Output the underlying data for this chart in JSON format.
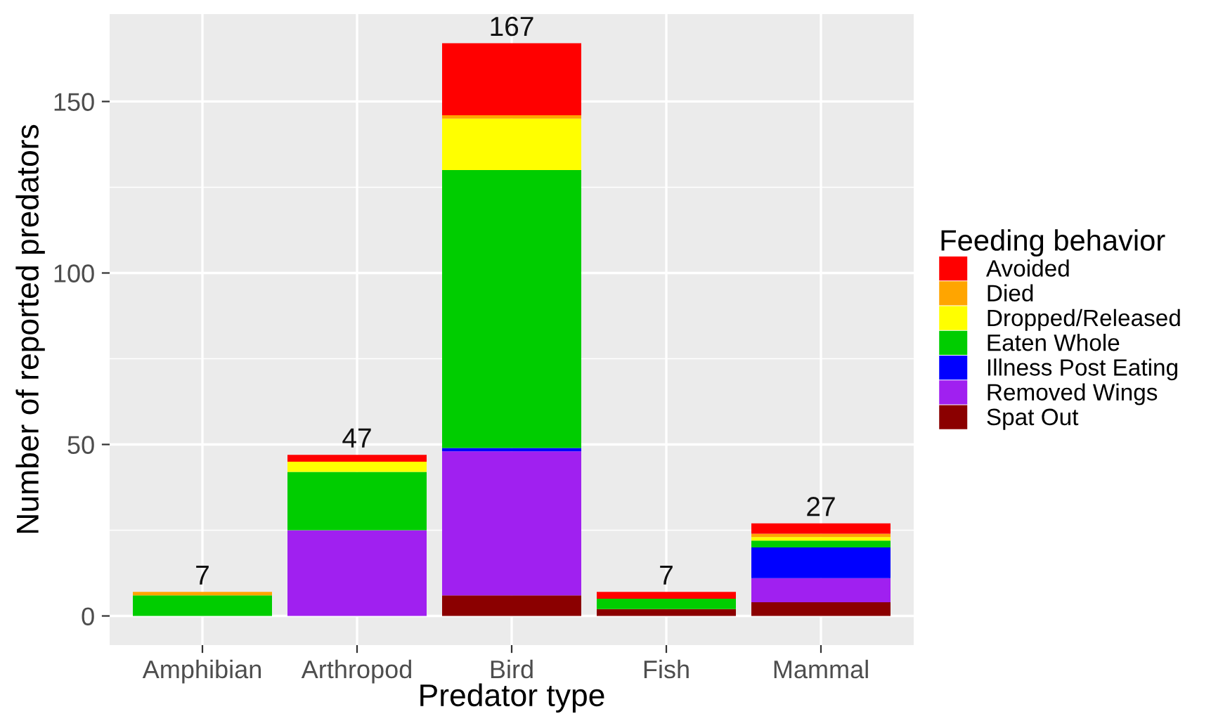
{
  "chart_data": {
    "type": "bar",
    "stacked": true,
    "xlabel": "Predator type",
    "ylabel": "Number of reported predators",
    "legend_title": "Feeding behavior",
    "categories": [
      "Amphibian",
      "Arthropod",
      "Bird",
      "Fish",
      "Mammal"
    ],
    "series": [
      {
        "name": "Spat Out",
        "color": "#8b0000",
        "values": [
          0,
          0,
          6,
          2,
          4
        ]
      },
      {
        "name": "Removed Wings",
        "color": "#a020f0",
        "values": [
          0,
          25,
          42,
          0,
          7
        ]
      },
      {
        "name": "Illness Post Eating",
        "color": "#0000ff",
        "values": [
          0,
          0,
          1,
          0,
          9
        ]
      },
      {
        "name": "Eaten Whole",
        "color": "#00cd00",
        "values": [
          6,
          17,
          81,
          3,
          2
        ]
      },
      {
        "name": "Dropped/Released",
        "color": "#ffff00",
        "values": [
          0,
          3,
          15,
          0,
          1
        ]
      },
      {
        "name": "Died",
        "color": "#ffa500",
        "values": [
          1,
          0,
          1,
          0,
          1
        ]
      },
      {
        "name": "Avoided",
        "color": "#ff0000",
        "values": [
          0,
          2,
          21,
          2,
          3
        ]
      }
    ],
    "totals": [
      "7",
      "47",
      "167",
      "7",
      "27"
    ],
    "ylim": [
      -8.5,
      175.5
    ],
    "yticks": [
      0,
      50,
      100,
      150
    ],
    "grid": true,
    "legend": "right"
  }
}
